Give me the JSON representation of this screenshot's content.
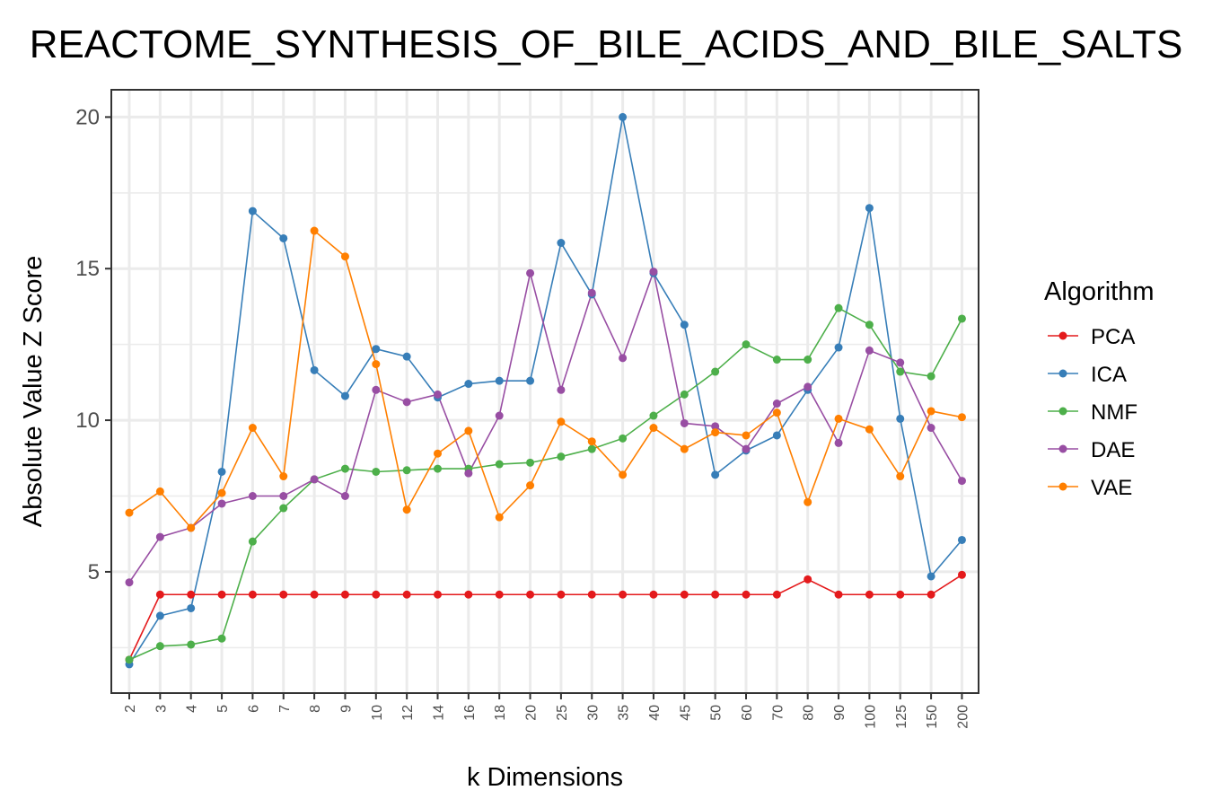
{
  "chart_data": {
    "type": "line",
    "title": "REACTOME_SYNTHESIS_OF_BILE_ACIDS_AND_BILE_SALTS",
    "xlabel": "k Dimensions",
    "ylabel": "Absolute Value Z Score",
    "categories": [
      "2",
      "3",
      "4",
      "5",
      "6",
      "7",
      "8",
      "9",
      "10",
      "12",
      "14",
      "16",
      "18",
      "20",
      "25",
      "30",
      "35",
      "40",
      "45",
      "50",
      "60",
      "70",
      "80",
      "90",
      "100",
      "125",
      "150",
      "200"
    ],
    "ylim": [
      1.0,
      20.9
    ],
    "yticks": [
      5,
      10,
      15,
      20
    ],
    "grid": true,
    "legend": {
      "title": "Algorithm",
      "position": "right"
    },
    "series": [
      {
        "name": "PCA",
        "color": "#e41a1c",
        "values": [
          2.1,
          4.25,
          4.25,
          4.25,
          4.25,
          4.25,
          4.25,
          4.25,
          4.25,
          4.25,
          4.25,
          4.25,
          4.25,
          4.25,
          4.25,
          4.25,
          4.25,
          4.25,
          4.25,
          4.25,
          4.25,
          4.25,
          4.75,
          4.25,
          4.25,
          4.25,
          4.25,
          4.9
        ]
      },
      {
        "name": "ICA",
        "color": "#377eb8",
        "values": [
          1.95,
          3.55,
          3.8,
          8.3,
          16.9,
          16.0,
          11.65,
          10.8,
          12.35,
          12.1,
          10.75,
          11.2,
          11.3,
          11.3,
          15.85,
          14.15,
          20.0,
          14.85,
          13.15,
          8.2,
          9.0,
          9.5,
          11.0,
          12.4,
          17.0,
          10.05,
          4.85,
          6.05
        ]
      },
      {
        "name": "NMF",
        "color": "#4daf4a",
        "values": [
          2.1,
          2.55,
          2.6,
          2.8,
          6.0,
          7.1,
          8.05,
          8.4,
          8.3,
          8.35,
          8.4,
          8.4,
          8.55,
          8.6,
          8.8,
          9.05,
          9.4,
          10.15,
          10.85,
          11.6,
          12.5,
          12.0,
          12.0,
          13.7,
          13.15,
          11.6,
          11.45,
          13.35
        ]
      },
      {
        "name": "DAE",
        "color": "#984ea3",
        "values": [
          4.65,
          6.15,
          6.45,
          7.25,
          7.5,
          7.5,
          8.05,
          7.5,
          11.0,
          10.6,
          10.85,
          8.25,
          10.15,
          14.85,
          11.0,
          14.2,
          12.05,
          14.9,
          9.9,
          9.8,
          9.05,
          10.55,
          11.1,
          9.25,
          12.3,
          11.9,
          9.75,
          8.0
        ]
      },
      {
        "name": "VAE",
        "color": "#ff7f00",
        "values": [
          6.95,
          7.65,
          6.45,
          7.6,
          9.75,
          8.15,
          16.25,
          15.4,
          11.85,
          7.05,
          8.9,
          9.65,
          6.8,
          7.85,
          9.95,
          9.3,
          8.2,
          9.75,
          9.05,
          9.6,
          9.5,
          10.25,
          7.3,
          10.05,
          9.7,
          8.15,
          10.3,
          10.1
        ]
      }
    ]
  }
}
